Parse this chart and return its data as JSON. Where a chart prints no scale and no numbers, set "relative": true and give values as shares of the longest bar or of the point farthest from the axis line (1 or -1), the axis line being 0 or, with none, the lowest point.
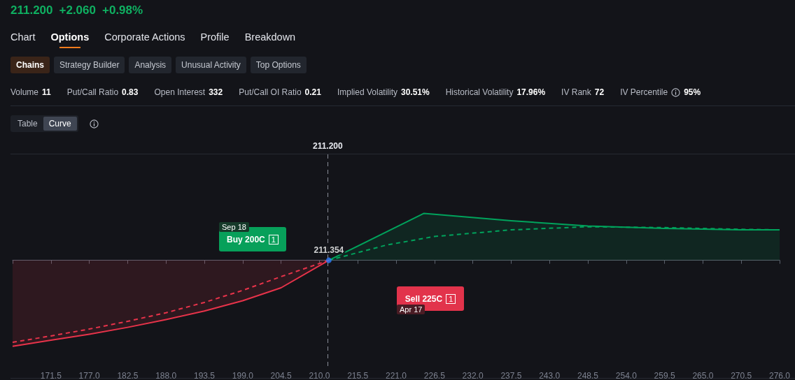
{
  "chart_data": {
    "type": "area",
    "annotations": [
      "211.200",
      "+2.060",
      "+0.98%",
      "Chart",
      "Options",
      "Corporate Actions",
      "Profile",
      "Breakdown",
      "Chains",
      "Strategy Builder",
      "Analysis",
      "Unusual Activity",
      "Top Options",
      "Volume 11",
      "Put/Call Ratio 0.83",
      "Open Interest 332",
      "Put/Call OI Ratio 0.21",
      "Implied Volatility 30.51%",
      "Historical Volatility 17.96%",
      "IV Rank 72",
      "IV Percentile 95%",
      "Table",
      "Curve",
      "Buy 200C 1",
      "Sep 18",
      "Sell 225C 1",
      "Apr 17",
      {
        "text": "211.354",
        "x": 211.354,
        "y": 0
      }
    ],
    "relative": true,
    "series": [
      {
        "color": "#e8334a",
        "x": [
          166,
          171.5,
          177,
          182.5,
          188,
          193.5,
          199,
          204.5,
          211.354
        ],
        "values": [
          -1,
          -0.93,
          -0.86,
          -0.78,
          -0.69,
          -0.59,
          -0.47,
          -0.32,
          0
        ]
      },
      {
        "type": "line",
        "line_style": "dashed",
        "color": "#e8334a",
        "x": [
          166,
          171.5,
          177,
          182.5,
          188,
          193.5,
          199,
          204.5,
          211.354
        ],
        "values": [
          -0.954,
          -0.88,
          -0.8,
          -0.71,
          -0.61,
          -0.49,
          -0.35,
          -0.19,
          0
        ]
      },
      {
        "color": "#00a35c",
        "x": [
          211.354,
          225,
          237.5,
          248.5,
          259.5,
          270.5,
          276
        ],
        "values": [
          0,
          0.546,
          0.46,
          0.4,
          0.37,
          0.355,
          0.354
        ]
      },
      {
        "type": "line",
        "line_style": "dashed",
        "color": "#00a35c",
        "x": [
          211.354,
          219.6,
          226.5,
          237.5,
          248.5,
          259.5,
          270.5,
          276
        ],
        "values": [
          0,
          0.177,
          0.277,
          0.354,
          0.39,
          0.38,
          0.36,
          0.354
        ]
      }
    ],
    "xlim": [
      166,
      276
    ],
    "xticks": [
      171.5,
      {
        "value": 177,
        "label": "177.0"
      },
      182.5,
      {
        "value": 188,
        "label": "188.0"
      },
      193.5,
      {
        "value": 199,
        "label": "199.0"
      },
      204.5,
      {
        "value": 210,
        "label": "210.0"
      },
      215.5,
      {
        "value": 221,
        "label": "221.0"
      },
      226.5,
      {
        "value": 232,
        "label": "232.0"
      },
      237.5,
      {
        "value": 243,
        "label": "243.0"
      },
      248.5,
      {
        "value": 254,
        "label": "254.0"
      },
      259.5,
      {
        "value": 265,
        "label": "265.0"
      },
      270.5,
      {
        "value": 276,
        "label": "276.0"
      }
    ],
    "ref_lines": [
      {
        "axis": "x",
        "value": 211.2,
        "label": "211.200",
        "line_style": "dashed",
        "color": "#8a8e99"
      }
    ],
    "grid": false,
    "marker": "none"
  }
}
